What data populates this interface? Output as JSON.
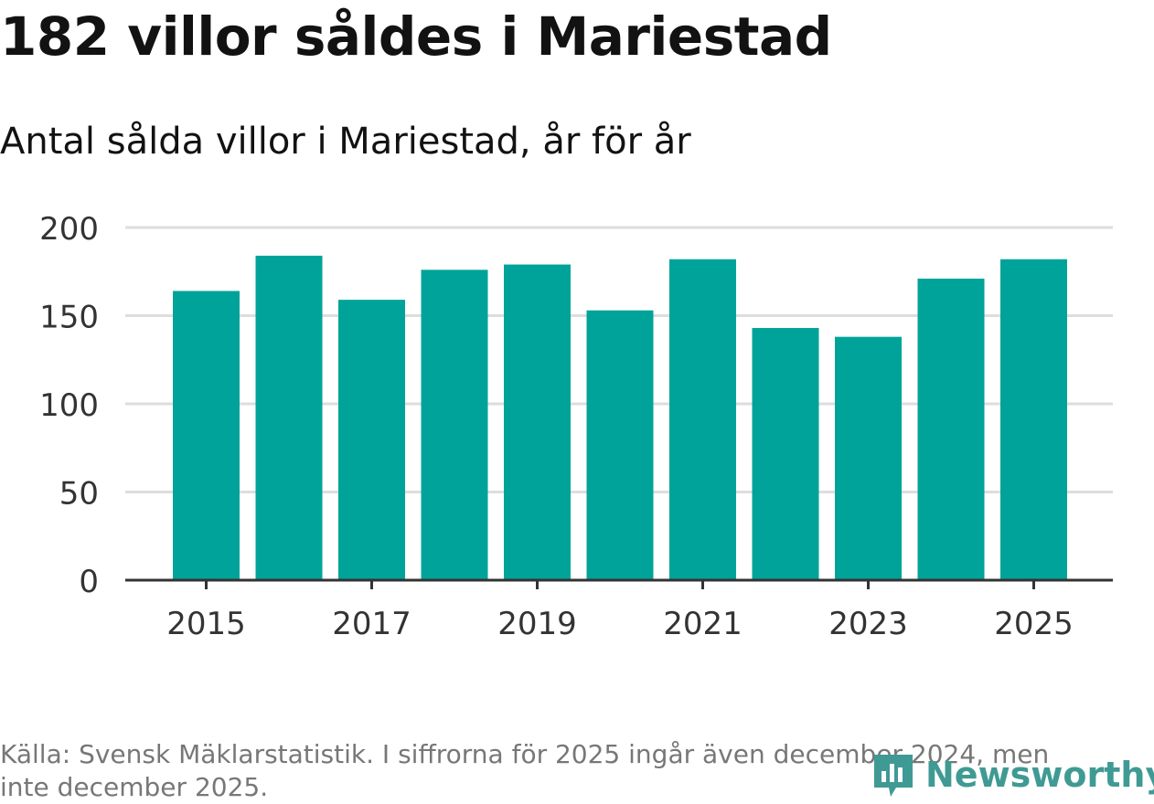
{
  "header": {
    "title": "182 villor såldes i Mariestad",
    "subtitle": "Antal sålda villor i Mariestad, år för år"
  },
  "footer": {
    "source": "Källa: Svensk Mäklarstatistik. I siffrorna för 2025 ingår även december 2024, men inte december 2025.",
    "brand": "Newsworthy"
  },
  "colors": {
    "bar": "#00a39a",
    "grid": "#dddddd",
    "axis": "#333333",
    "brand": "#3f9a94"
  },
  "chart_data": {
    "type": "bar",
    "title": "182 villor såldes i Mariestad",
    "subtitle": "Antal sålda villor i Mariestad, år för år",
    "xlabel": "",
    "ylabel": "",
    "categories": [
      "2015",
      "2016",
      "2017",
      "2018",
      "2019",
      "2020",
      "2021",
      "2022",
      "2023",
      "2024",
      "2025"
    ],
    "values": [
      164,
      184,
      159,
      176,
      179,
      153,
      182,
      143,
      138,
      171,
      182
    ],
    "ylim": [
      0,
      200
    ],
    "yticks": [
      0,
      50,
      100,
      150,
      200
    ],
    "xtick_labels": [
      "2015",
      "2017",
      "2019",
      "2021",
      "2023",
      "2025"
    ],
    "grid": true,
    "legend": "none"
  }
}
